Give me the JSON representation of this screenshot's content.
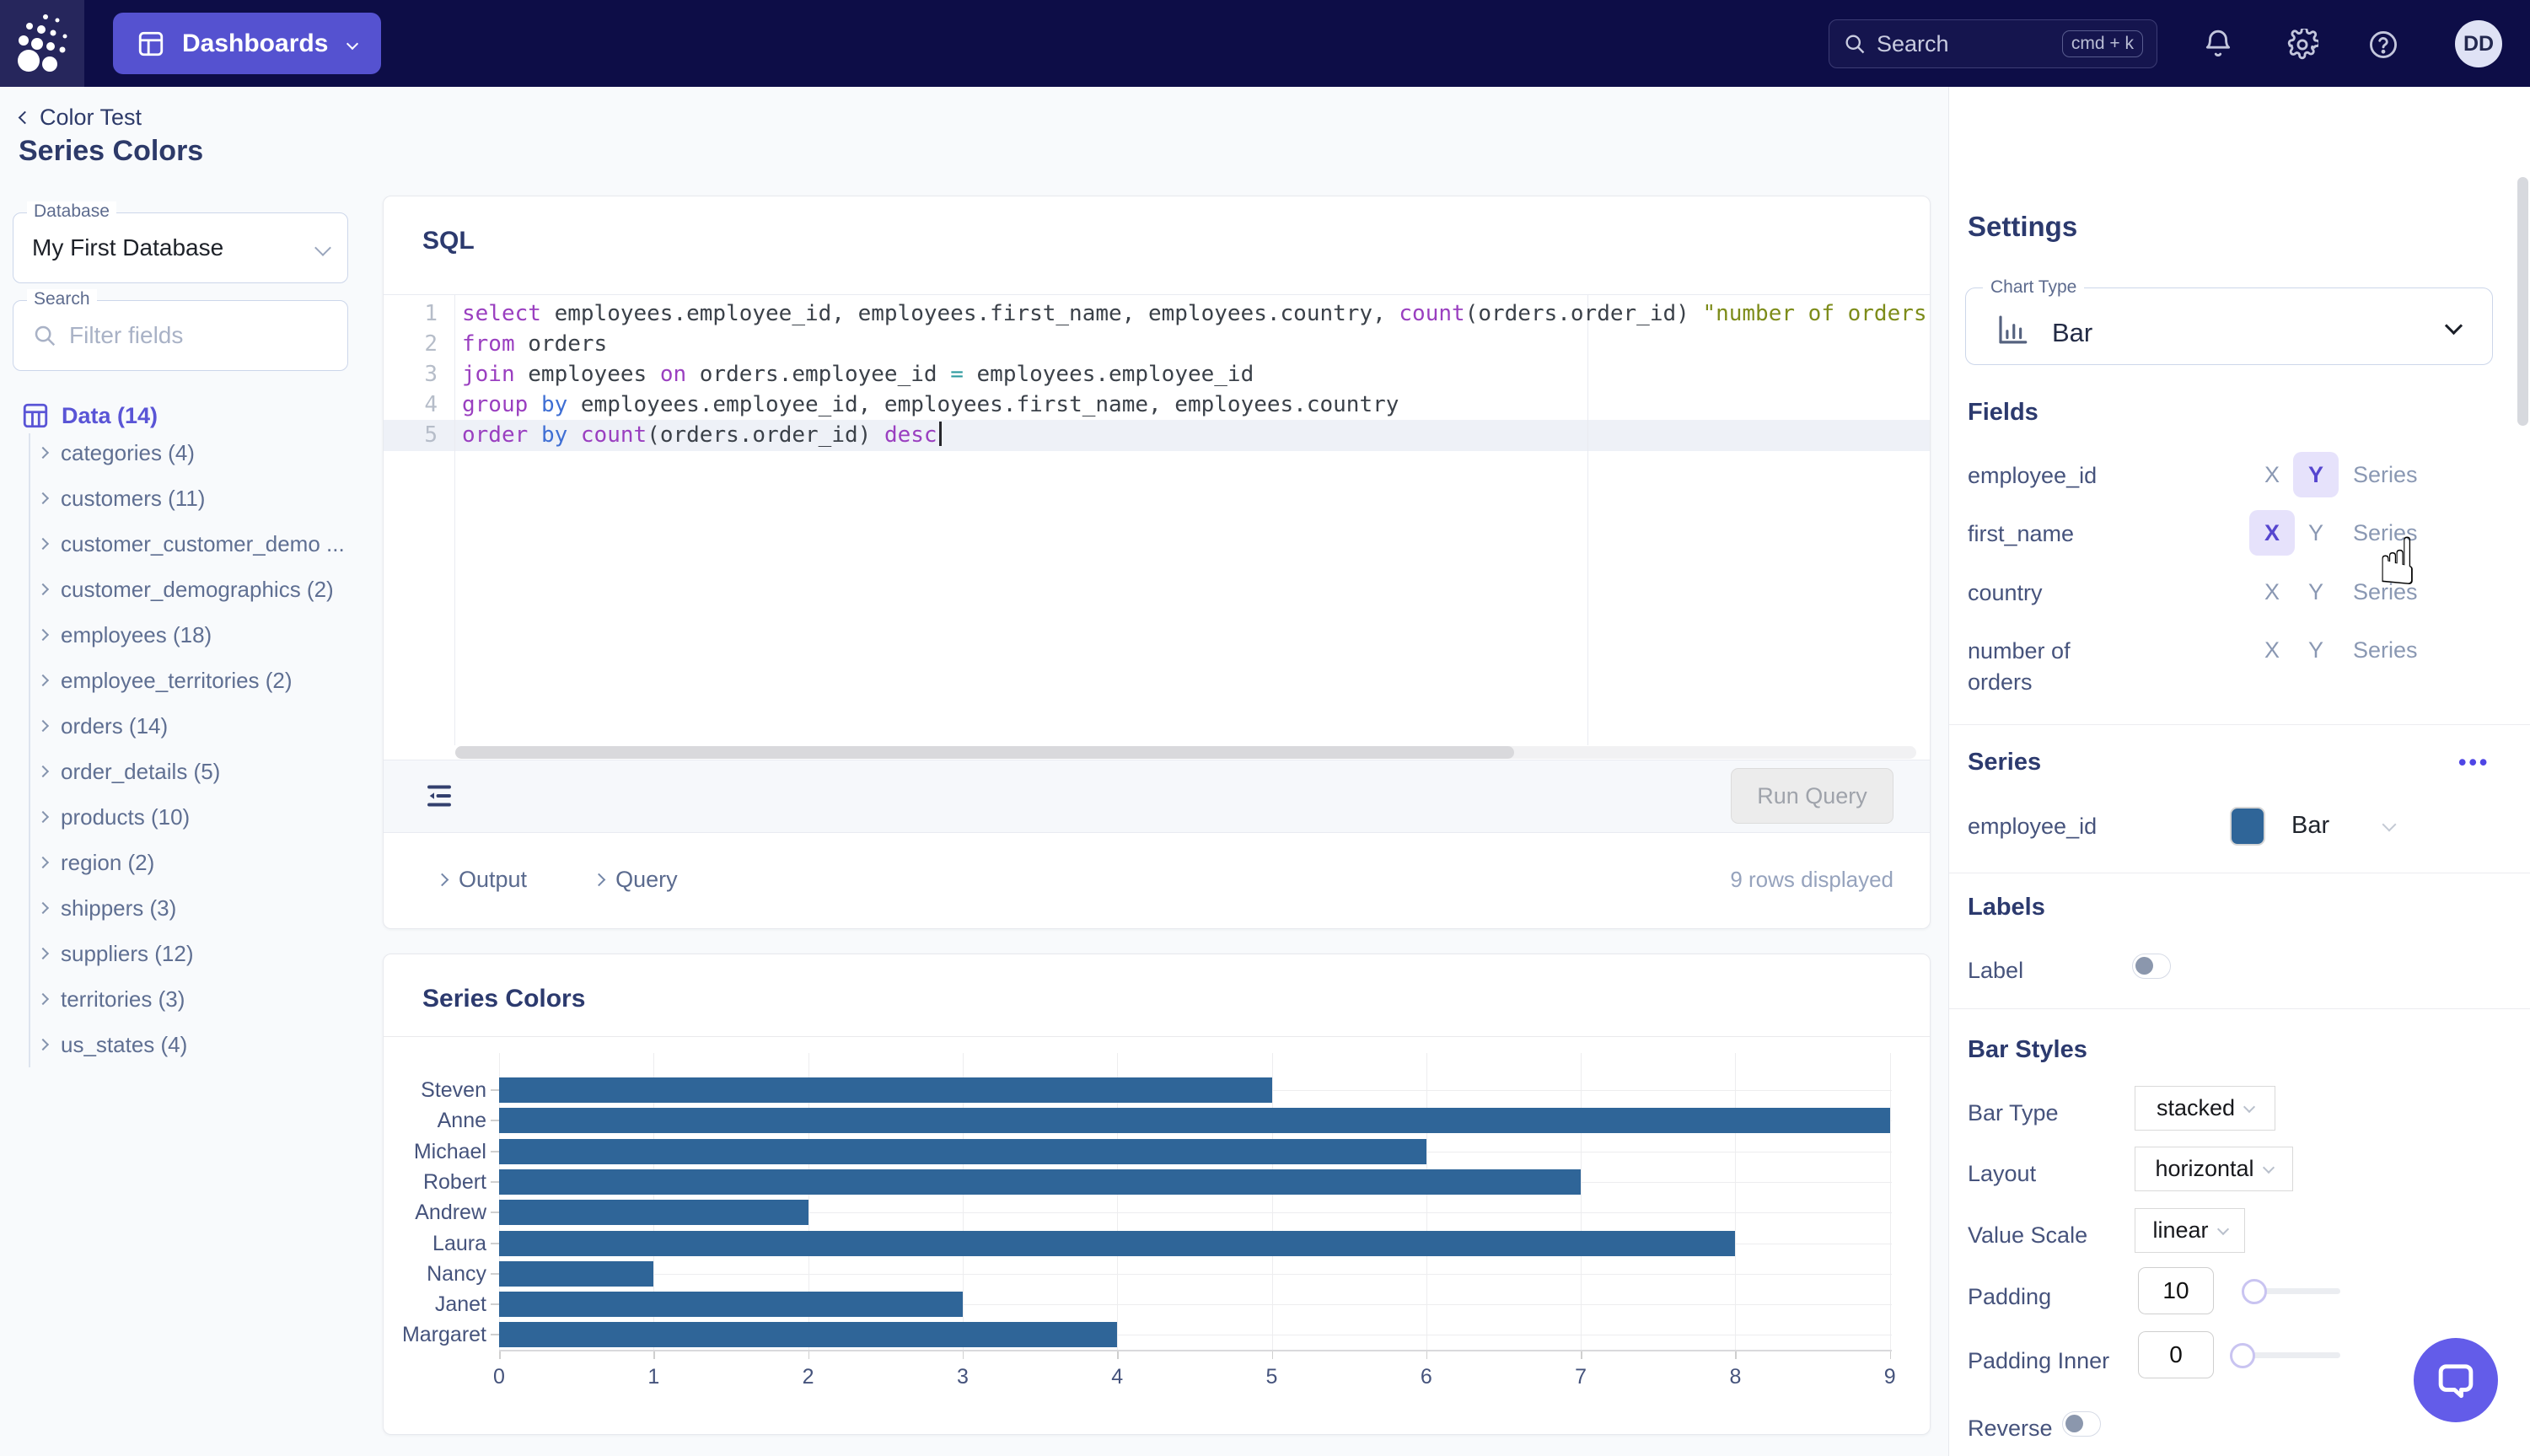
{
  "topbar": {
    "app_button": "Dashboards",
    "search_placeholder": "Search",
    "search_shortcut": "cmd + k",
    "avatar_initials": "DD"
  },
  "breadcrumb": {
    "back": "Color Test",
    "title": "Series Colors"
  },
  "sidebar": {
    "database": {
      "label": "Database",
      "value": "My First Database"
    },
    "search": {
      "label": "Search",
      "placeholder": "Filter fields"
    },
    "data_label": "Data (14)",
    "tables": [
      "categories (4)",
      "customers (11)",
      "customer_customer_demo ...",
      "customer_demographics (2)",
      "employees (18)",
      "employee_territories (2)",
      "orders (14)",
      "order_details (5)",
      "products (10)",
      "region (2)",
      "shippers (3)",
      "suppliers (12)",
      "territories (3)",
      "us_states (4)"
    ]
  },
  "editor": {
    "title": "SQL",
    "lines": [
      [
        [
          "k",
          "select"
        ],
        [
          "i",
          " employees.employee_id, employees.first_name, employees.country, "
        ],
        [
          "k",
          "count"
        ],
        [
          "i",
          "(orders.order_id) "
        ],
        [
          "s",
          "\"number of orders\""
        ]
      ],
      [
        [
          "k",
          "from"
        ],
        [
          "i",
          " orders"
        ]
      ],
      [
        [
          "k",
          "join"
        ],
        [
          "i",
          " employees "
        ],
        [
          "k",
          "on"
        ],
        [
          "i",
          " orders.employee_id "
        ],
        [
          "o",
          "="
        ],
        [
          "i",
          " employees.employee_id"
        ]
      ],
      [
        [
          "k",
          "group"
        ],
        [
          "i",
          " "
        ],
        [
          "b",
          "by"
        ],
        [
          "i",
          " employees.employee_id, employees.first_name, employees.country"
        ]
      ],
      [
        [
          "k",
          "order"
        ],
        [
          "i",
          " "
        ],
        [
          "b",
          "by"
        ],
        [
          "i",
          " "
        ],
        [
          "k",
          "count"
        ],
        [
          "i",
          "(orders.order_id) "
        ],
        [
          "k",
          "desc"
        ]
      ]
    ],
    "run_button": "Run Query",
    "output_tab": "Output",
    "query_tab": "Query",
    "rows_displayed": "9 rows displayed"
  },
  "chart_card": {
    "title": "Series Colors"
  },
  "chart_data": {
    "type": "bar",
    "orientation": "horizontal",
    "title": "Series Colors",
    "categories": [
      "Steven",
      "Anne",
      "Michael",
      "Robert",
      "Andrew",
      "Laura",
      "Nancy",
      "Janet",
      "Margaret"
    ],
    "values": [
      5,
      9,
      6,
      7,
      2,
      8,
      1,
      3,
      4
    ],
    "series_name": "employee_id",
    "xlabel": "",
    "ylabel": "",
    "xlim": [
      0,
      9
    ],
    "x_ticks": [
      0,
      1,
      2,
      3,
      4,
      5,
      6,
      7,
      8,
      9
    ],
    "grid": true,
    "bar_color": "#2f6598",
    "legend": "none"
  },
  "settings": {
    "title": "Settings",
    "chart_type": {
      "label": "Chart Type",
      "value": "Bar"
    },
    "fields_label": "Fields",
    "axis_options": [
      "X",
      "Y",
      "Series"
    ],
    "fields": [
      {
        "name": "employee_id",
        "active": "Y"
      },
      {
        "name": "first_name",
        "active": "X"
      },
      {
        "name": "country",
        "active": null
      },
      {
        "name": "number of orders",
        "active": null
      }
    ],
    "series_section": {
      "label": "Series",
      "menu_icon": "ellipsis",
      "row_name": "employee_id",
      "row_color": "#2f6598",
      "row_type": "Bar"
    },
    "labels_section": {
      "label": "Labels",
      "toggle_label": "Label",
      "enabled": false
    },
    "bar_styles": {
      "label": "Bar Styles",
      "bar_type": {
        "label": "Bar Type",
        "value": "stacked"
      },
      "layout": {
        "label": "Layout",
        "value": "horizontal"
      },
      "value_scale": {
        "label": "Value Scale",
        "value": "linear"
      },
      "padding": {
        "label": "Padding",
        "value": "10"
      },
      "padding_inner": {
        "label": "Padding Inner",
        "value": "0"
      },
      "reverse": {
        "label": "Reverse",
        "enabled": false
      }
    }
  },
  "colors": {
    "topbar_bg": "#0d0d47",
    "accent_button": "#5552d0",
    "indigo": "#5a55d6",
    "pill_bg": "#e6e2fb",
    "pill_text": "#5646cf",
    "heading_navy": "#2c3a6e",
    "bar_blue": "#2f6598",
    "chat_fab": "#635ce9"
  }
}
